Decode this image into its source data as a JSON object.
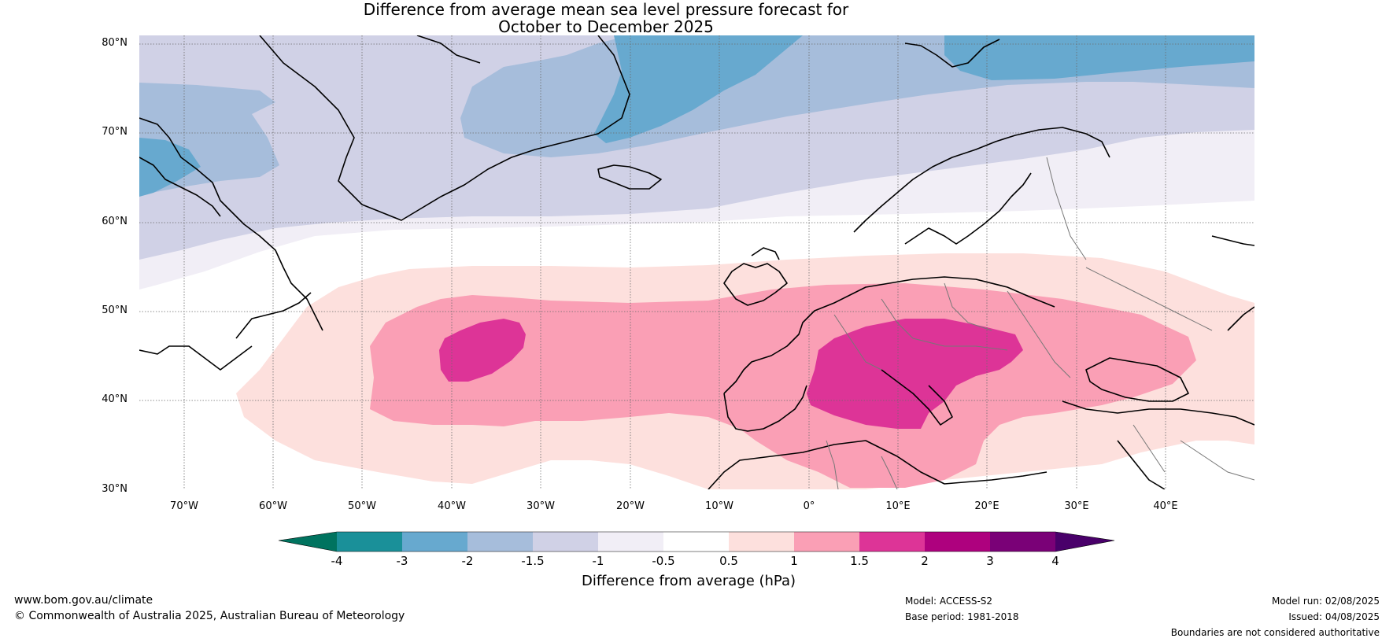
{
  "title": {
    "line1": "Difference from average mean sea level pressure forecast for",
    "line2": "October to December 2025"
  },
  "map": {
    "projection": "equirectangular",
    "lon_range": [
      -75,
      50
    ],
    "lat_range": [
      30,
      81
    ],
    "lat_labels": [
      "80°N",
      "70°N",
      "60°N",
      "50°N",
      "40°N",
      "30°N"
    ],
    "lon_labels": [
      "70°W",
      "60°W",
      "50°W",
      "40°W",
      "30°W",
      "20°W",
      "10°W",
      "0°",
      "10°E",
      "20°E",
      "30°E",
      "40°E"
    ],
    "features": {
      "positive_anomaly_center_atlantic": "1.5 to 2 hPa near 36°W 45°N",
      "positive_anomaly_center_mediterranean": "1.5 to 2 hPa over Italy and central Europe",
      "negative_anomaly": "-2 to -3 hPa near Greenland and the Arctic"
    }
  },
  "colorbar": {
    "title": "Difference from average (hPa)",
    "ticks": [
      "-4",
      "-3",
      "-2",
      "-1.5",
      "-1",
      "-0.5",
      "0.5",
      "1",
      "1.5",
      "2",
      "3",
      "4"
    ],
    "colors": {
      "below_min": "#00735f",
      "-4_-3": "#1a9099",
      "-3_-2": "#67a9cf",
      "-2_-1.5": "#a6bddb",
      "-1.5_-1": "#d0d1e6",
      "-1_-0.5": "#f1eef6",
      "-0.5_0.5": "#ffffff",
      "0.5_1": "#fde0dd",
      "1_1.5": "#fa9fb5",
      "1.5_2": "#dd3497",
      "2_3": "#ae017e",
      "3_4": "#7a0177",
      "above_max": "#49006a"
    }
  },
  "footer": {
    "website": "www.bom.gov.au/climate",
    "copyright": "© Commonwealth of Australia 2025, Australian Bureau of Meteorology",
    "model": "Model: ACCESS-S2",
    "base_period": "Base period: 1981-2018",
    "model_run": "Model run: 02/08/2025",
    "issued": "Issued: 04/08/2025",
    "disclaimer": "Boundaries are not considered authoritative"
  }
}
